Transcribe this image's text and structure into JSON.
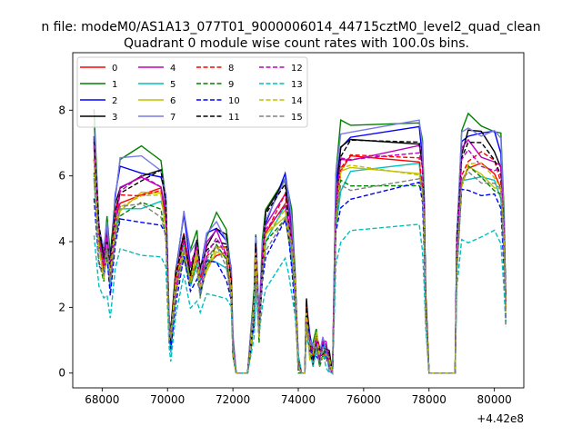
{
  "suptitle": "n file: modeM0/AS1A13_077T01_9000006014_44715cztM0_level2_quad_clean",
  "chart_data": {
    "type": "line",
    "title": "Quadrant 0 module wise count rates with 100.0s bins.",
    "xlabel": "",
    "ylabel": "",
    "x_offset_label": "+4.42e8",
    "xlim": [
      67100,
      80900
    ],
    "ylim": [
      -0.45,
      9.75
    ],
    "xticks": [
      68000,
      70000,
      72000,
      74000,
      76000,
      78000,
      80000
    ],
    "yticks": [
      0,
      2,
      4,
      6,
      8
    ],
    "grid": false,
    "legend": {
      "placement": "upper-left",
      "columns": 4
    },
    "series": [
      {
        "name": "0",
        "color": "#ff0000",
        "dash": "solid",
        "level": 6.4
      },
      {
        "name": "1",
        "color": "#008000",
        "dash": "solid",
        "level": 7.8
      },
      {
        "name": "2",
        "color": "#0000ff",
        "dash": "solid",
        "level": 7.4
      },
      {
        "name": "3",
        "color": "#000000",
        "dash": "solid",
        "level": 7.2
      },
      {
        "name": "4",
        "color": "#bf00bf",
        "dash": "solid",
        "level": 6.9
      },
      {
        "name": "5",
        "color": "#00bfbf",
        "dash": "solid",
        "level": 6.1
      },
      {
        "name": "6",
        "color": "#bfbf00",
        "dash": "solid",
        "level": 6.2
      },
      {
        "name": "7",
        "color": "#7a7ae6",
        "dash": "solid",
        "level": 7.6
      },
      {
        "name": "8",
        "color": "#ff0000",
        "dash": "dashed",
        "level": 6.6
      },
      {
        "name": "9",
        "color": "#008000",
        "dash": "dashed",
        "level": 6.0
      },
      {
        "name": "10",
        "color": "#0000ff",
        "dash": "dashed",
        "level": 5.6
      },
      {
        "name": "11",
        "color": "#000000",
        "dash": "dashed",
        "level": 7.0
      },
      {
        "name": "12",
        "color": "#bf00bf",
        "dash": "dashed",
        "level": 6.7
      },
      {
        "name": "13",
        "color": "#00bfbf",
        "dash": "dashed",
        "level": 4.3
      },
      {
        "name": "14",
        "color": "#bfbf00",
        "dash": "dashed",
        "level": 6.3
      },
      {
        "name": "15",
        "color": "#808080",
        "dash": "dashed",
        "level": 6.0
      }
    ],
    "profile": {
      "x": [
        67750,
        67900,
        68050,
        68150,
        68250,
        68400,
        68550,
        69200,
        69800,
        69950,
        70050,
        70100,
        70250,
        70500,
        70700,
        70900,
        71000,
        71200,
        71500,
        71800,
        71950,
        72000,
        72100,
        72300,
        72450,
        72550,
        72650,
        72700,
        72800,
        72900,
        73000,
        73600,
        73700,
        73800,
        73900,
        74000,
        74100,
        74200,
        74250,
        74350,
        74450,
        74550,
        74650,
        74750,
        74850,
        74950,
        75050,
        75150,
        75300,
        75600,
        77700,
        77800,
        77850,
        77900,
        78000,
        78600,
        78800,
        78850,
        79000,
        79200,
        79600,
        80000,
        80200,
        80300,
        80350
      ],
      "m": [
        1.0,
        0.6,
        0.5,
        0.6,
        0.45,
        0.7,
        0.82,
        0.85,
        0.84,
        0.72,
        0.2,
        0.15,
        0.4,
        0.62,
        0.45,
        0.55,
        0.42,
        0.55,
        0.6,
        0.55,
        0.4,
        0.12,
        0.0,
        0.0,
        0.0,
        0.15,
        0.3,
        0.55,
        0.2,
        0.5,
        0.65,
        0.8,
        0.7,
        0.6,
        0.4,
        0.05,
        0.0,
        0.0,
        0.28,
        0.12,
        0.08,
        0.15,
        0.08,
        0.12,
        0.1,
        0.05,
        0.0,
        0.75,
        0.95,
        0.98,
        1.0,
        0.9,
        0.7,
        0.3,
        0.0,
        0.0,
        0.0,
        0.55,
        0.95,
        1.0,
        0.98,
        0.95,
        0.9,
        0.6,
        0.3
      ]
    }
  }
}
